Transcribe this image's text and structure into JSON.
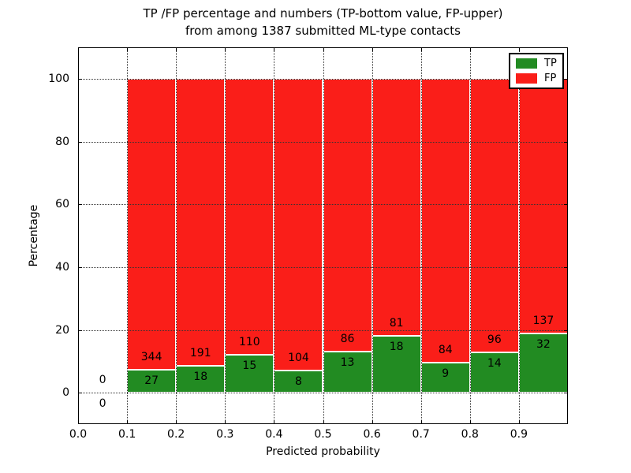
{
  "figure": {
    "title_line1": "TP /FP percentage and numbers (TP-bottom value, FP-upper)",
    "title_line2": "from among 1387 submitted ML-type contacts",
    "xlabel": "Predicted probability",
    "ylabel": "Percentage"
  },
  "legend": {
    "items": [
      {
        "label": "TP",
        "color": "#228b22"
      },
      {
        "label": "FP",
        "color": "#fa1e19"
      }
    ]
  },
  "chart_data": {
    "type": "bar",
    "stacked": true,
    "title": "TP /FP percentage and numbers (TP-bottom value, FP-upper) from among 1387 submitted ML-type contacts",
    "xlabel": "Predicted probability",
    "ylabel": "Percentage",
    "total_submitted": 1387,
    "xlim": [
      0.0,
      1.0
    ],
    "ylim": [
      -10,
      110
    ],
    "x_ticks": [
      0.0,
      0.1,
      0.2,
      0.3,
      0.4,
      0.5,
      0.6,
      0.7,
      0.8,
      0.9
    ],
    "x_tick_labels": [
      "0.0",
      "0.1",
      "0.2",
      "0.3",
      "0.4",
      "0.5",
      "0.6",
      "0.7",
      "0.8",
      "0.9"
    ],
    "y_ticks": [
      0,
      20,
      40,
      60,
      80,
      100
    ],
    "y_tick_labels": [
      "0",
      "20",
      "40",
      "60",
      "80",
      "100"
    ],
    "grid_style": "dotted",
    "legend_position": "upper-right",
    "series": [
      {
        "name": "TP",
        "color": "#228b22"
      },
      {
        "name": "FP",
        "color": "#fa1e19"
      }
    ],
    "bins": [
      {
        "range": [
          0.0,
          0.1
        ],
        "tp": 0,
        "fp": 0,
        "tp_pct": 0,
        "fp_pct": 0
      },
      {
        "range": [
          0.1,
          0.2
        ],
        "tp": 27,
        "fp": 344,
        "tp_pct": 7.28,
        "fp_pct": 92.72
      },
      {
        "range": [
          0.2,
          0.3
        ],
        "tp": 18,
        "fp": 191,
        "tp_pct": 8.61,
        "fp_pct": 91.39
      },
      {
        "range": [
          0.3,
          0.4
        ],
        "tp": 15,
        "fp": 110,
        "tp_pct": 12.0,
        "fp_pct": 88.0
      },
      {
        "range": [
          0.4,
          0.5
        ],
        "tp": 8,
        "fp": 104,
        "tp_pct": 7.14,
        "fp_pct": 92.86
      },
      {
        "range": [
          0.5,
          0.6
        ],
        "tp": 13,
        "fp": 86,
        "tp_pct": 13.13,
        "fp_pct": 86.87
      },
      {
        "range": [
          0.6,
          0.7
        ],
        "tp": 18,
        "fp": 81,
        "tp_pct": 18.18,
        "fp_pct": 81.82
      },
      {
        "range": [
          0.7,
          0.8
        ],
        "tp": 9,
        "fp": 84,
        "tp_pct": 9.68,
        "fp_pct": 90.32
      },
      {
        "range": [
          0.8,
          0.9
        ],
        "tp": 14,
        "fp": 96,
        "tp_pct": 12.73,
        "fp_pct": 87.27
      },
      {
        "range": [
          0.9,
          1.0
        ],
        "tp": 32,
        "fp": 137,
        "tp_pct": 18.93,
        "fp_pct": 81.07
      }
    ]
  }
}
